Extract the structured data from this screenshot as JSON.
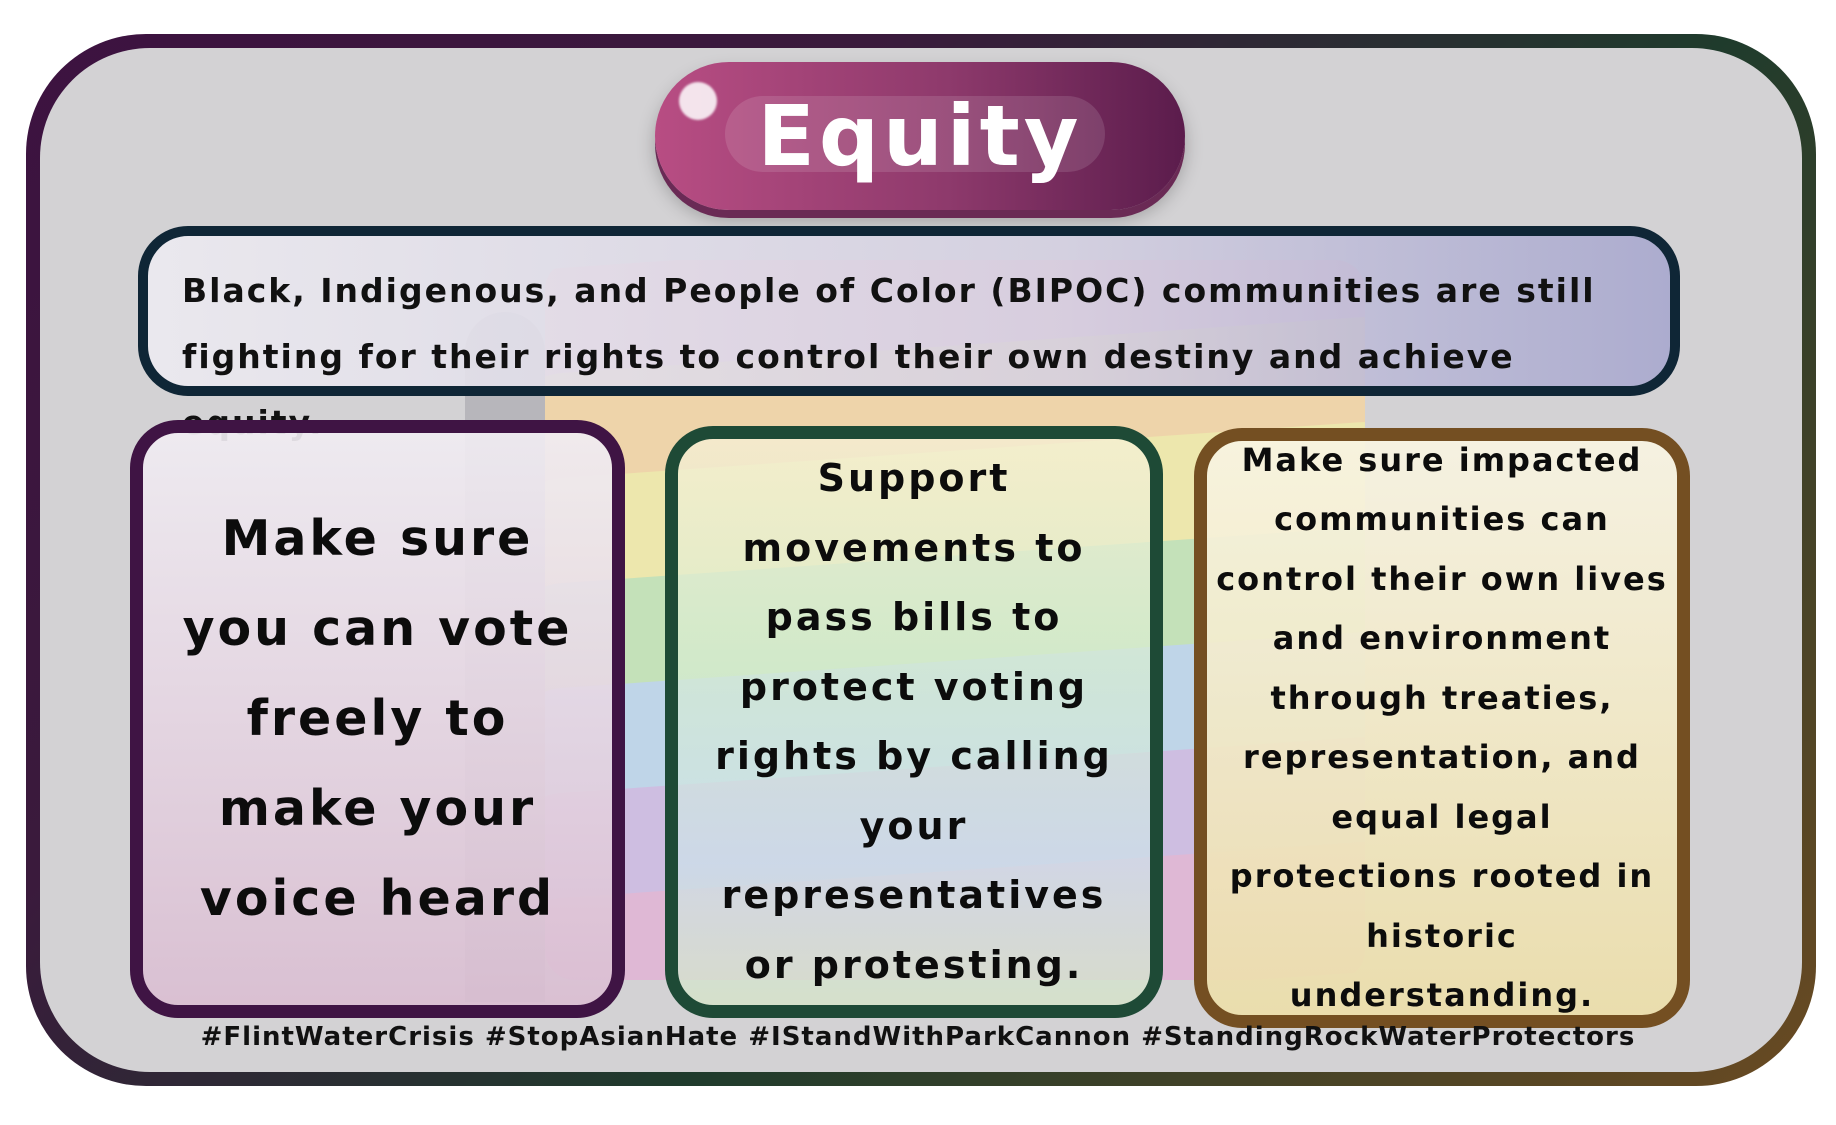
{
  "title": "Equity",
  "banner": {
    "text": "Black, Indigenous, and People of Color (BIPOC) communities are still fighting for their rights to control their own destiny and achieve equity."
  },
  "cards": [
    {
      "text": "Make sure you can vote freely to make your voice heard",
      "border_color": "#3f1444"
    },
    {
      "text": "Support movements to pass bills to protect voting rights by calling your representatives or protesting.",
      "border_color": "#1e4a36"
    },
    {
      "text": "Make sure impacted communities can control their own lives and environment through treaties, representation, and equal legal protections rooted in historic understanding.",
      "border_color": "#744f22"
    }
  ],
  "hashtags": "#FlintWaterCrisis #StopAsianHate #IStandWithParkCannon #StandingRockWaterProtectors",
  "flag_colors": [
    "#f2b8c6",
    "#f7d59c",
    "#f6efa0",
    "#bfe6b0",
    "#b9d6ef",
    "#cdb8e6",
    "#e3b0d6"
  ],
  "accent_color": "#8e3a6c"
}
